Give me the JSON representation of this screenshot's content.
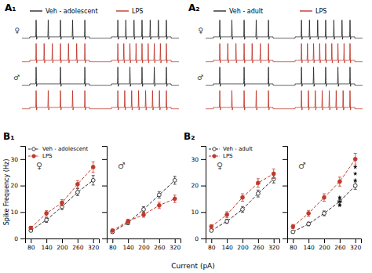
{
  "chart_data": [
    {
      "type": "trace",
      "title": "A₁",
      "legend": "top",
      "categories": [
        "♀",
        "♂"
      ],
      "series": [
        {
          "name": "Veh - adolescent",
          "color": "#2b2b2b",
          "values": [
            [
              5,
              7
            ],
            [
              3,
              5
            ]
          ]
        },
        {
          "name": "LPS",
          "color": "#c0392b",
          "values": [
            [
              7,
              9
            ],
            [
              5,
              8
            ]
          ]
        }
      ]
    },
    {
      "type": "trace",
      "title": "A₂",
      "legend": "top",
      "categories": [
        "♀",
        "♂"
      ],
      "series": [
        {
          "name": "Veh - adult",
          "color": "#2b2b2b",
          "values": [
            [
              5,
              7
            ],
            [
              3,
              5
            ]
          ]
        },
        {
          "name": "LPS",
          "color": "#c0392b",
          "values": [
            [
              7,
              9
            ],
            [
              5,
              8
            ]
          ]
        }
      ]
    },
    {
      "type": "line",
      "title": "B₁",
      "annotations": [
        "♀"
      ],
      "legend": "upper left",
      "xlabel": "Current (pA)",
      "ylabel": "Spike Frequency (Hz)",
      "x": [
        80,
        140,
        200,
        260,
        320
      ],
      "xlim": [
        58,
        342
      ],
      "xticks": [
        80,
        140,
        200,
        260,
        320
      ],
      "ylim": [
        0,
        35
      ],
      "yticks": [
        0,
        10,
        20,
        30
      ],
      "line_style": "dashed",
      "series": [
        {
          "name": "Veh - adolescent",
          "color": "#2b2b2b",
          "marker": "open-circle",
          "values": [
            3.0,
            7.0,
            12.0,
            17.5,
            22.0
          ],
          "errors": [
            0.5,
            0.9,
            1.1,
            1.3,
            1.8
          ]
        },
        {
          "name": "LPS",
          "color": "#c0392b",
          "marker": "circle",
          "values": [
            4.0,
            9.5,
            13.5,
            20.5,
            27.0
          ],
          "errors": [
            0.6,
            1.0,
            1.2,
            1.4,
            2.0
          ]
        }
      ]
    },
    {
      "type": "line",
      "annotations": [
        "♂"
      ],
      "tick_labels": "x",
      "x": [
        80,
        140,
        200,
        260,
        320
      ],
      "xlim": [
        58,
        342
      ],
      "xticks": [
        80,
        140,
        200,
        260,
        320
      ],
      "ylim": [
        0,
        35
      ],
      "yticks": [
        0,
        10,
        20,
        30
      ],
      "line_style": "dashed",
      "series": [
        {
          "color": "#2b2b2b",
          "marker": "open-circle",
          "values": [
            2.5,
            6.0,
            11.0,
            16.5,
            22.0
          ],
          "errors": [
            0.5,
            0.8,
            1.0,
            1.2,
            1.5
          ]
        },
        {
          "color": "#c0392b",
          "marker": "circle",
          "values": [
            3.0,
            6.5,
            9.0,
            12.5,
            15.0
          ],
          "errors": [
            0.5,
            0.8,
            1.0,
            1.2,
            1.4
          ]
        }
      ]
    },
    {
      "type": "line",
      "title": "B₂",
      "annotations": [
        "♀"
      ],
      "legend": "upper left",
      "x": [
        80,
        140,
        200,
        260,
        320
      ],
      "xlim": [
        58,
        342
      ],
      "xticks": [
        80,
        140,
        200,
        260,
        320
      ],
      "ylim": [
        0,
        35
      ],
      "yticks": [
        0,
        10,
        20,
        30
      ],
      "line_style": "dashed",
      "series": [
        {
          "name": "Veh - adult",
          "color": "#2b2b2b",
          "marker": "open-circle",
          "values": [
            3.0,
            6.5,
            11.0,
            17.0,
            22.5
          ],
          "errors": [
            0.5,
            0.8,
            1.1,
            1.3,
            1.5
          ]
        },
        {
          "name": "LPS",
          "color": "#c0392b",
          "marker": "circle",
          "values": [
            4.5,
            9.0,
            15.5,
            21.0,
            24.5
          ],
          "errors": [
            0.7,
            1.1,
            1.4,
            1.6,
            1.8
          ]
        }
      ]
    },
    {
      "type": "line",
      "annotations": [
        "♂"
      ],
      "tick_labels": "x",
      "x": [
        80,
        140,
        200,
        260,
        320
      ],
      "xlim": [
        58,
        342
      ],
      "xticks": [
        80,
        140,
        200,
        260,
        320
      ],
      "ylim": [
        0,
        35
      ],
      "yticks": [
        0,
        10,
        20,
        30
      ],
      "line_style": "dashed",
      "series": [
        {
          "color": "#2b2b2b",
          "marker": "open-circle",
          "values": [
            2.5,
            5.5,
            9.5,
            14.0,
            20.0
          ],
          "errors": [
            0.4,
            0.7,
            0.9,
            1.1,
            1.4
          ]
        },
        {
          "color": "#c0392b",
          "marker": "circle",
          "values": [
            4.5,
            9.5,
            15.5,
            21.5,
            30.0
          ],
          "errors": [
            0.8,
            1.1,
            1.4,
            1.7,
            2.2
          ]
        }
      ],
      "significance": [
        {
          "x": 260,
          "y": 15.5
        },
        {
          "x": 260,
          "y": 14.0
        },
        {
          "x": 260,
          "y": 12.5
        },
        {
          "x": 320,
          "y": 27.0
        },
        {
          "x": 320,
          "y": 24.5
        },
        {
          "x": 320,
          "y": 22.0
        }
      ]
    }
  ]
}
